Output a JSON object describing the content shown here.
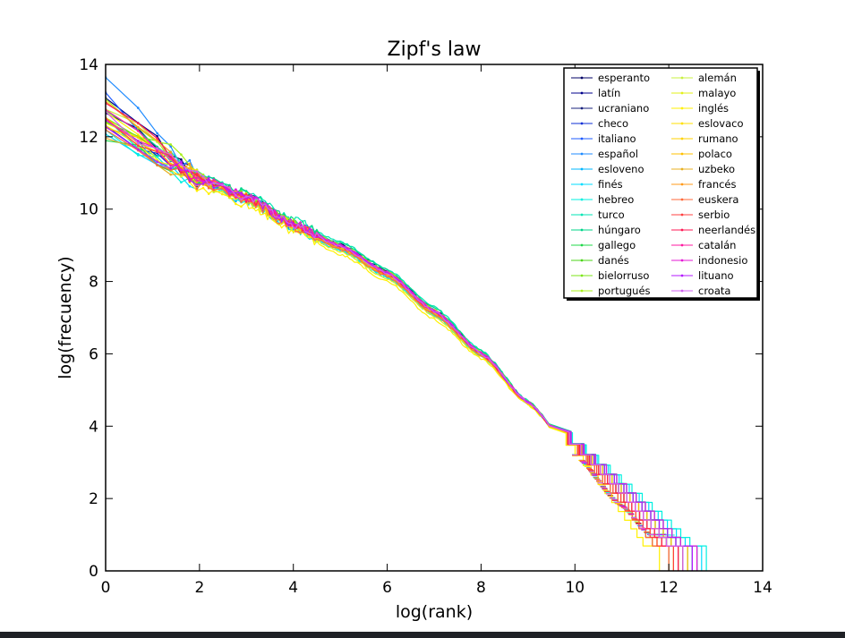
{
  "chart_data": {
    "type": "line",
    "title": "Zipf's law",
    "xlabel": "log(rank)",
    "ylabel": "log(frecuency)",
    "xlim": [
      0,
      14
    ],
    "ylim": [
      0,
      14
    ],
    "x_ticks": [
      "0",
      "2",
      "4",
      "6",
      "8",
      "10",
      "12",
      "14"
    ],
    "y_ticks": [
      "0",
      "2",
      "4",
      "6",
      "8",
      "10",
      "12",
      "14"
    ],
    "grid": false,
    "legend_position": "top-right",
    "legend_columns": 2,
    "series": [
      {
        "name": "esperanto",
        "color": "#000066",
        "y0": 12.6,
        "end": 12.2,
        "offset": 0.08
      },
      {
        "name": "latín",
        "color": "#00008b",
        "y0": 13.0,
        "end": 12.0,
        "offset": 0.05
      },
      {
        "name": "ucraniano",
        "color": "#1a237e",
        "y0": 12.4,
        "end": 12.5,
        "offset": 0.02
      },
      {
        "name": "checo",
        "color": "#0d2fd6",
        "y0": 12.2,
        "end": 12.6,
        "offset": -0.02
      },
      {
        "name": "italiano",
        "color": "#1e5bff",
        "y0": 13.1,
        "end": 12.3,
        "offset": 0.04
      },
      {
        "name": "español",
        "color": "#1f8bff",
        "y0": 13.5,
        "end": 12.4,
        "offset": 0.06
      },
      {
        "name": "esloveno",
        "color": "#00b7ff",
        "y0": 12.3,
        "end": 12.3,
        "offset": -0.05
      },
      {
        "name": "finés",
        "color": "#00dcff",
        "y0": 11.9,
        "end": 12.7,
        "offset": -0.08
      },
      {
        "name": "hebreo",
        "color": "#00f0e0",
        "y0": 12.0,
        "end": 12.8,
        "offset": -0.1
      },
      {
        "name": "turco",
        "color": "#00e6b4",
        "y0": 12.3,
        "end": 12.6,
        "offset": 0.15
      },
      {
        "name": "húngaro",
        "color": "#00d68a",
        "y0": 12.5,
        "end": 12.5,
        "offset": 0.12
      },
      {
        "name": "gallego",
        "color": "#20d84a",
        "y0": 12.1,
        "end": 12.2,
        "offset": 0.0
      },
      {
        "name": "danés",
        "color": "#4cd61a",
        "y0": 12.6,
        "end": 12.3,
        "offset": 0.03
      },
      {
        "name": "bielorruso",
        "color": "#7de61a",
        "y0": 12.7,
        "end": 12.4,
        "offset": 0.05
      },
      {
        "name": "portugués",
        "color": "#a8f01a",
        "y0": 13.2,
        "end": 12.3,
        "offset": 0.07
      },
      {
        "name": "alemán",
        "color": "#c8f040",
        "y0": 12.9,
        "end": 12.1,
        "offset": -0.03
      },
      {
        "name": "malayo",
        "color": "#e3f01a",
        "y0": 12.5,
        "end": 12.0,
        "offset": -0.12
      },
      {
        "name": "inglés",
        "color": "#fff000",
        "y0": 12.8,
        "end": 11.8,
        "offset": -0.2
      },
      {
        "name": "eslovaco",
        "color": "#ffdf00",
        "y0": 12.4,
        "end": 12.2,
        "offset": 0.02
      },
      {
        "name": "rumano",
        "color": "#ffd200",
        "y0": 12.6,
        "end": 12.1,
        "offset": 0.01
      },
      {
        "name": "polaco",
        "color": "#ffc000",
        "y0": 12.3,
        "end": 12.4,
        "offset": -0.01
      },
      {
        "name": "uzbeko",
        "color": "#e8b020",
        "y0": 12.0,
        "end": 12.3,
        "offset": -0.04
      },
      {
        "name": "francés",
        "color": "#ff9a1a",
        "y0": 13.0,
        "end": 12.2,
        "offset": 0.03
      },
      {
        "name": "euskera",
        "color": "#ff6a3a",
        "y0": 12.2,
        "end": 12.0,
        "offset": -0.06
      },
      {
        "name": "serbio",
        "color": "#ff4040",
        "y0": 12.5,
        "end": 12.1,
        "offset": 0.01
      },
      {
        "name": "neerlandés",
        "color": "#ff1a55",
        "y0": 12.9,
        "end": 12.2,
        "offset": 0.02
      },
      {
        "name": "catalán",
        "color": "#ff1aa0",
        "y0": 12.7,
        "end": 12.3,
        "offset": 0.04
      },
      {
        "name": "indonesio",
        "color": "#e61ad6",
        "y0": 12.4,
        "end": 12.6,
        "offset": 0.06
      },
      {
        "name": "lituano",
        "color": "#b41aff",
        "y0": 12.2,
        "end": 12.5,
        "offset": 0.03
      },
      {
        "name": "croata",
        "color": "#d060f0",
        "y0": 12.6,
        "end": 12.3,
        "offset": 0.02
      }
    ]
  }
}
